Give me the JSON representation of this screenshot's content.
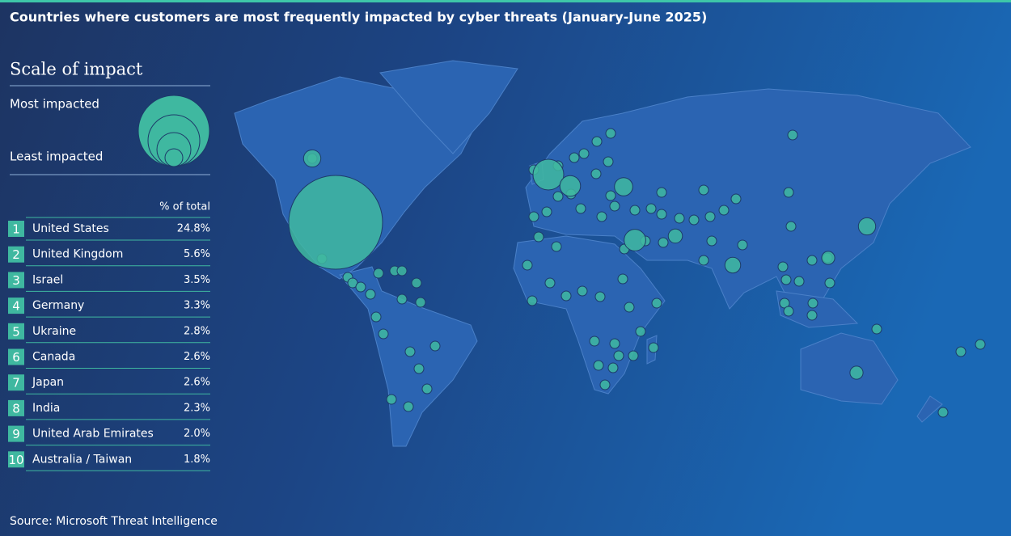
{
  "header": {
    "title": "Countries where customers are most frequently impacted by cyber threats  (January-June 2025)"
  },
  "legend": {
    "title": "Scale of impact",
    "max_label": "Most impacted",
    "min_label": "Least impacted"
  },
  "table": {
    "column_header": "% of total",
    "rows": [
      {
        "rank": 1,
        "country": "United States",
        "value": 24.8,
        "value_label": "24.8%"
      },
      {
        "rank": 2,
        "country": "United Kingdom",
        "value": 5.6,
        "value_label": "5.6%"
      },
      {
        "rank": 3,
        "country": "Israel",
        "value": 3.5,
        "value_label": "3.5%"
      },
      {
        "rank": 4,
        "country": "Germany",
        "value": 3.3,
        "value_label": "3.3%"
      },
      {
        "rank": 5,
        "country": "Ukraine",
        "value": 2.8,
        "value_label": "2.8%"
      },
      {
        "rank": 6,
        "country": "Canada",
        "value": 2.6,
        "value_label": "2.6%"
      },
      {
        "rank": 7,
        "country": "Japan",
        "value": 2.6,
        "value_label": "2.6%"
      },
      {
        "rank": 8,
        "country": "India",
        "value": 2.3,
        "value_label": "2.3%"
      },
      {
        "rank": 9,
        "country": "United Arab Emirates",
        "value": 2.0,
        "value_label": "2.0%"
      },
      {
        "rank": 10,
        "country": "Australia / Taiwan",
        "value": 1.8,
        "value_label": "1.8%"
      }
    ]
  },
  "footer": {
    "source": "Source: Microsoft Threat Intelligence"
  }
}
